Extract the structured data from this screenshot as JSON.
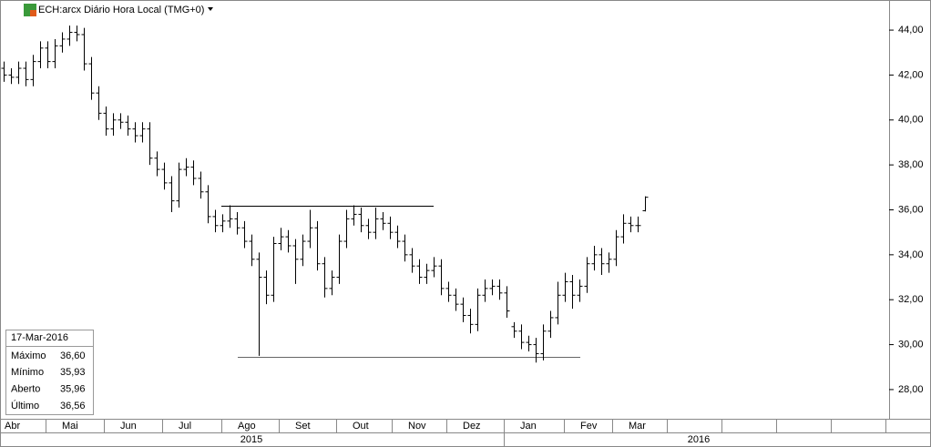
{
  "chart_data": {
    "type": "ohlc",
    "title": "ECH:arcx Diário Hora Local (TMG+0)",
    "color": "#000000",
    "open": [
      42.3,
      42.0,
      41.9,
      42.3,
      41.8,
      42.6,
      43.2,
      42.6,
      43.3,
      43.6,
      43.9,
      43.8,
      42.5,
      41.2,
      40.3,
      39.6,
      40.0,
      39.9,
      39.6,
      39.3,
      39.6,
      38.3,
      37.8,
      37.2,
      36.4,
      37.8,
      37.9,
      37.4,
      36.8,
      35.7,
      35.3,
      35.5,
      35.6,
      35.2,
      34.6,
      33.8,
      33.0,
      32.2,
      34.5,
      34.8,
      34.4,
      33.8,
      34.6,
      35.2,
      33.6,
      32.5,
      33.0,
      34.6,
      35.6,
      35.8,
      35.3,
      35.0,
      35.6,
      35.4,
      35.0,
      34.6,
      34.0,
      33.5,
      33.0,
      33.3,
      33.5,
      32.5,
      32.2,
      31.8,
      31.3,
      30.9,
      32.2,
      32.5,
      32.6,
      32.3,
      30.8,
      30.6,
      30.1,
      30.0,
      29.6,
      30.6,
      31.2,
      32.2,
      32.8,
      32.2,
      32.6,
      33.6,
      34.0,
      33.6,
      33.8,
      34.8,
      35.4,
      35.3,
      35.96
    ],
    "high": [
      42.6,
      42.3,
      42.6,
      42.6,
      42.9,
      43.5,
      43.5,
      43.6,
      43.9,
      44.2,
      44.2,
      44.1,
      42.8,
      41.5,
      40.6,
      40.3,
      40.3,
      40.2,
      39.9,
      39.9,
      39.9,
      38.6,
      38.1,
      37.5,
      38.1,
      38.3,
      38.2,
      37.7,
      37.1,
      36.0,
      35.8,
      36.2,
      35.9,
      35.5,
      34.9,
      34.1,
      33.3,
      34.8,
      35.2,
      35.1,
      34.7,
      34.9,
      36.0,
      35.5,
      33.9,
      33.3,
      34.9,
      36.0,
      36.2,
      36.1,
      35.6,
      36.1,
      35.9,
      35.7,
      35.3,
      34.9,
      34.3,
      33.8,
      33.6,
      33.9,
      33.8,
      32.8,
      32.5,
      32.1,
      31.6,
      32.5,
      32.9,
      32.9,
      32.9,
      32.6,
      31.0,
      30.9,
      30.4,
      30.3,
      30.9,
      31.5,
      32.8,
      33.2,
      33.1,
      32.9,
      33.9,
      34.4,
      34.3,
      34.1,
      35.1,
      35.8,
      35.7,
      35.7,
      36.6
    ],
    "low": [
      41.7,
      41.6,
      41.6,
      41.5,
      41.5,
      42.3,
      42.3,
      42.3,
      43.0,
      43.3,
      43.5,
      42.2,
      40.9,
      40.0,
      39.3,
      39.3,
      39.6,
      39.3,
      39.0,
      39.0,
      38.0,
      37.5,
      36.9,
      35.9,
      36.1,
      37.5,
      37.1,
      36.5,
      35.4,
      35.0,
      35.0,
      35.2,
      34.9,
      34.3,
      33.5,
      29.5,
      31.8,
      31.9,
      34.2,
      34.1,
      32.7,
      33.5,
      34.3,
      33.3,
      32.1,
      32.2,
      32.7,
      34.3,
      35.3,
      35.0,
      34.7,
      34.7,
      35.1,
      34.7,
      34.3,
      33.7,
      33.2,
      32.7,
      32.7,
      33.0,
      32.2,
      31.9,
      31.5,
      31.0,
      30.5,
      30.6,
      31.9,
      32.2,
      32.0,
      31.2,
      30.3,
      29.8,
      29.7,
      29.2,
      29.3,
      30.3,
      30.9,
      31.9,
      31.6,
      31.9,
      32.3,
      33.3,
      33.1,
      33.2,
      33.5,
      34.5,
      35.0,
      35.0,
      35.93
    ],
    "close": [
      42.0,
      41.9,
      42.3,
      41.8,
      42.6,
      43.2,
      42.6,
      43.3,
      43.6,
      43.9,
      43.8,
      42.5,
      41.2,
      40.3,
      39.6,
      40.0,
      39.9,
      39.6,
      39.3,
      39.6,
      38.3,
      37.8,
      37.2,
      36.4,
      37.8,
      37.9,
      37.4,
      36.8,
      35.7,
      35.3,
      35.5,
      35.6,
      35.2,
      34.6,
      33.8,
      33.0,
      32.2,
      34.5,
      34.8,
      34.4,
      33.8,
      34.6,
      35.2,
      33.6,
      32.5,
      33.0,
      34.6,
      35.6,
      35.8,
      35.3,
      35.0,
      35.6,
      35.4,
      35.0,
      34.6,
      34.0,
      33.5,
      33.0,
      33.3,
      33.5,
      32.5,
      32.2,
      31.8,
      31.3,
      30.9,
      32.2,
      32.5,
      32.6,
      32.3,
      31.5,
      30.6,
      30.1,
      30.0,
      29.6,
      30.6,
      31.2,
      32.2,
      32.8,
      32.2,
      32.6,
      33.6,
      34.0,
      33.6,
      33.8,
      34.8,
      35.4,
      35.3,
      35.3,
      36.56
    ],
    "levels": [
      36.18,
      29.46
    ],
    "ylim": [
      26.7,
      45.34
    ],
    "yticks": [
      {
        "value": 28,
        "label": "28,00"
      },
      {
        "value": 30,
        "label": "30,00"
      },
      {
        "value": 32,
        "label": "32,00"
      },
      {
        "value": 34,
        "label": "34,00"
      },
      {
        "value": 36,
        "label": "36,00"
      },
      {
        "value": 38,
        "label": "38,00"
      },
      {
        "value": 40,
        "label": "40,00"
      },
      {
        "value": 42,
        "label": "42,00"
      },
      {
        "value": 44,
        "label": "44,00"
      }
    ],
    "months": [
      "Abr",
      "Mai",
      "Jun",
      "Jul",
      "Ago",
      "Set",
      "Out",
      "Nov",
      "Dez",
      "Jan",
      "Fev",
      "Mar"
    ],
    "years": [
      "2015",
      "2016"
    ],
    "info": {
      "date": "17-Mar-2016",
      "rows": [
        {
          "label": "Máximo",
          "value": "36,60"
        },
        {
          "label": "Mínimo",
          "value": "35,93"
        },
        {
          "label": "Aberto",
          "value": "35,96"
        },
        {
          "label": "Último",
          "value": "36,56"
        }
      ]
    }
  }
}
